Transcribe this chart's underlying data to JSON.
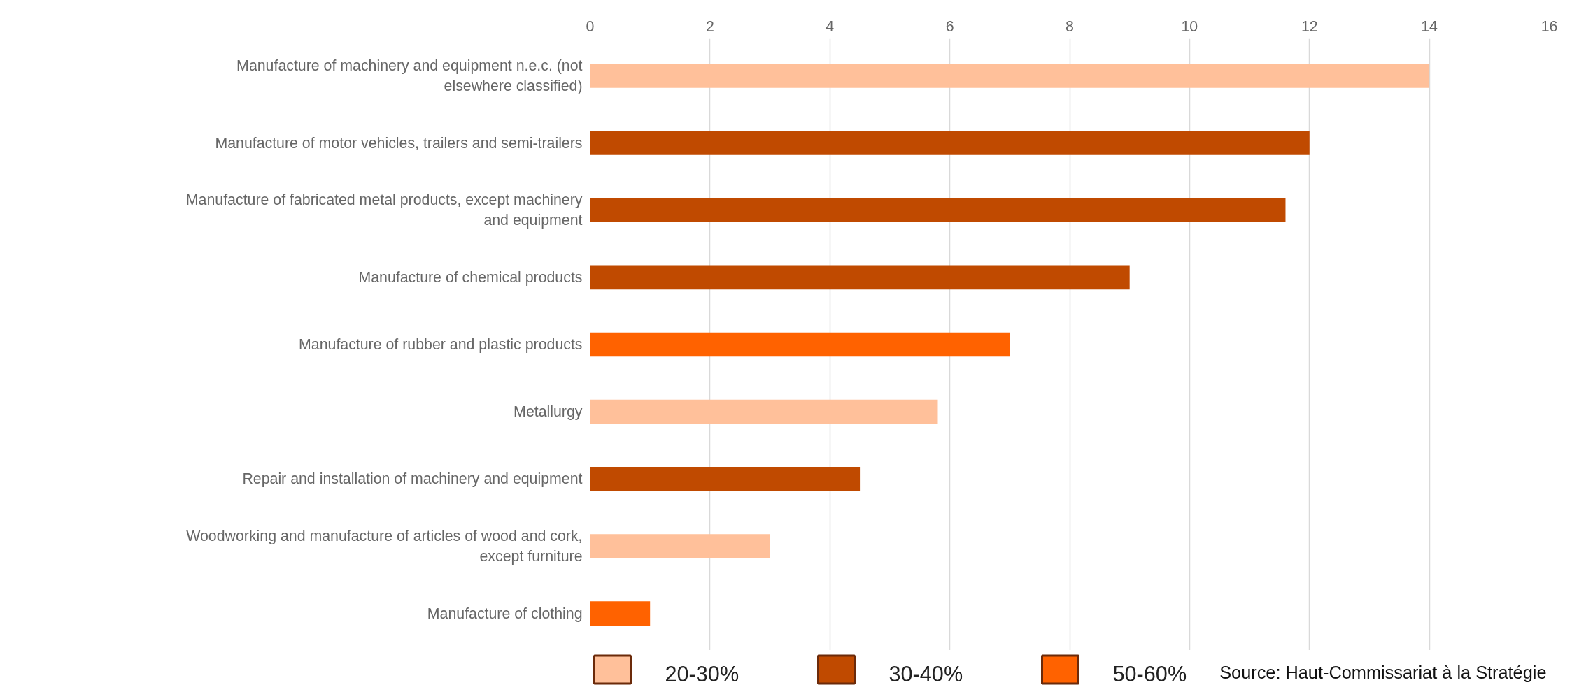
{
  "chart_data": {
    "type": "bar",
    "orientation": "horizontal",
    "categories": [
      "Manufacture of machinery and equipment n.e.c. (not elsewhere classified)",
      "Manufacture of motor vehicles, trailers and semi-trailers",
      "Manufacture of fabricated metal products, except machinery and equipment",
      "Manufacture of chemical products",
      "Manufacture of rubber and plastic products",
      "Metallurgy",
      "Repair and installation of machinery and equipment",
      "Woodworking and manufacture of articles of wood and cork, except furniture",
      "Manufacture of clothing"
    ],
    "series": [
      {
        "name": "20-30%",
        "color": "#ffc09a",
        "values": [
          14,
          null,
          null,
          null,
          null,
          5.8,
          null,
          3,
          null
        ]
      },
      {
        "name": "30-40%",
        "color": "#c04a00",
        "values": [
          null,
          12,
          11.6,
          9,
          null,
          null,
          4.5,
          null,
          null
        ]
      },
      {
        "name": "50-60%",
        "color": "#ff6200",
        "values": [
          null,
          null,
          null,
          null,
          7,
          null,
          null,
          null,
          1
        ]
      }
    ],
    "xlim": [
      0,
      16
    ],
    "xticks": [
      0,
      2,
      4,
      6,
      8,
      10,
      12,
      14,
      16
    ],
    "grid": "x",
    "legend": "bottom",
    "annotations": [
      "Source: Haut-Commissariat à la Stratégie"
    ]
  }
}
